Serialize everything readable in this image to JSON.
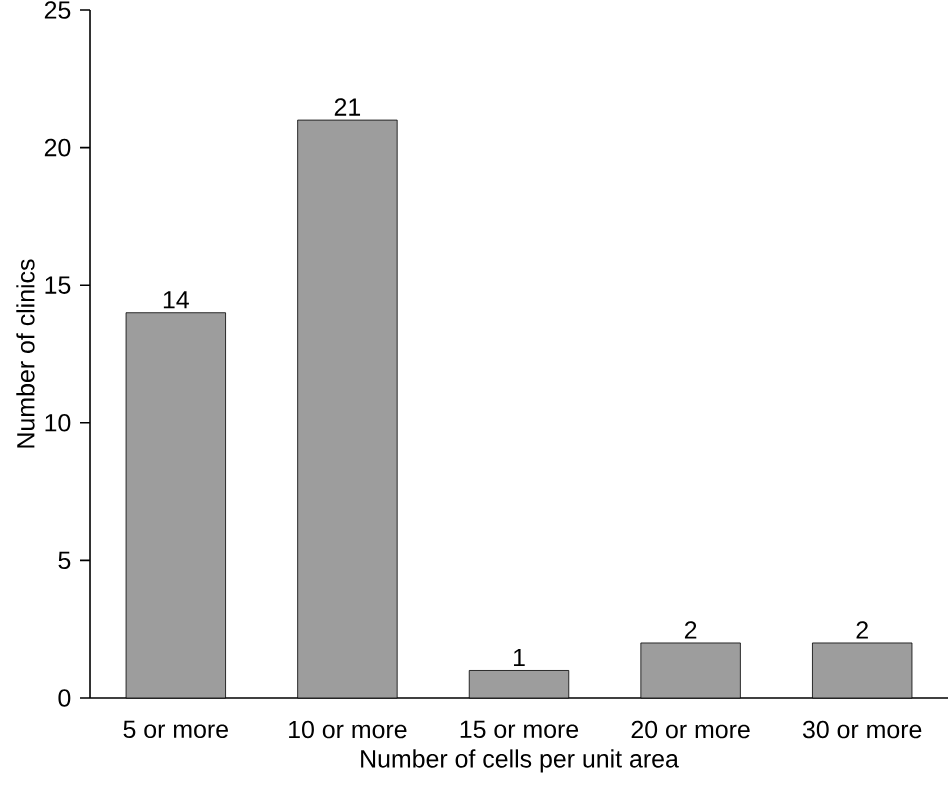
{
  "chart_data": {
    "type": "bar",
    "xlabel": "Number of cells per unit area",
    "ylabel": "Number of clinics",
    "categories": [
      "5 or more",
      "10 or more",
      "15 or more",
      "20 or more",
      "30 or more"
    ],
    "values": [
      14,
      21,
      1,
      2,
      2
    ],
    "color": "#9d9d9d",
    "data_labels": true,
    "ylim": [
      0,
      25
    ],
    "yticks": [
      0,
      5,
      10,
      15,
      20,
      25
    ]
  }
}
